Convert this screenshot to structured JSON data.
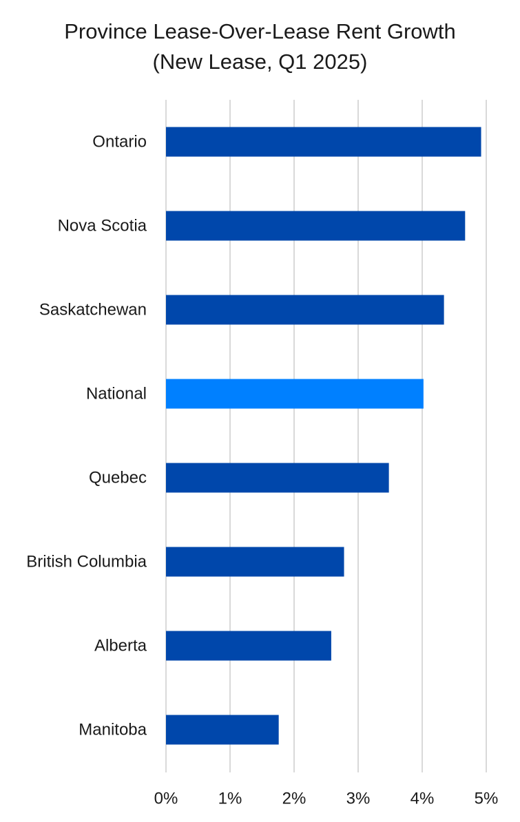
{
  "chart_data": {
    "type": "bar",
    "orientation": "horizontal",
    "title_lines": [
      "Province Lease-Over-Lease Rent Growth",
      "(New Lease, Q1 2025)"
    ],
    "categories": [
      "Ontario",
      "Nova Scotia",
      "Saskatchewan",
      "National",
      "Quebec",
      "British Columbia",
      "Alberta",
      "Manitoba"
    ],
    "values": [
      4.92,
      4.67,
      4.34,
      4.02,
      3.48,
      2.78,
      2.58,
      1.76
    ],
    "unit": "%",
    "xlim": [
      0,
      5
    ],
    "xticks": [
      "0%",
      "1%",
      "2%",
      "3%",
      "4%",
      "5%"
    ],
    "grid": true,
    "colors": {
      "default": "#0047AB",
      "highlight": "#0080FF",
      "highlight_category": "National",
      "grid": "#D9D9D9"
    }
  }
}
